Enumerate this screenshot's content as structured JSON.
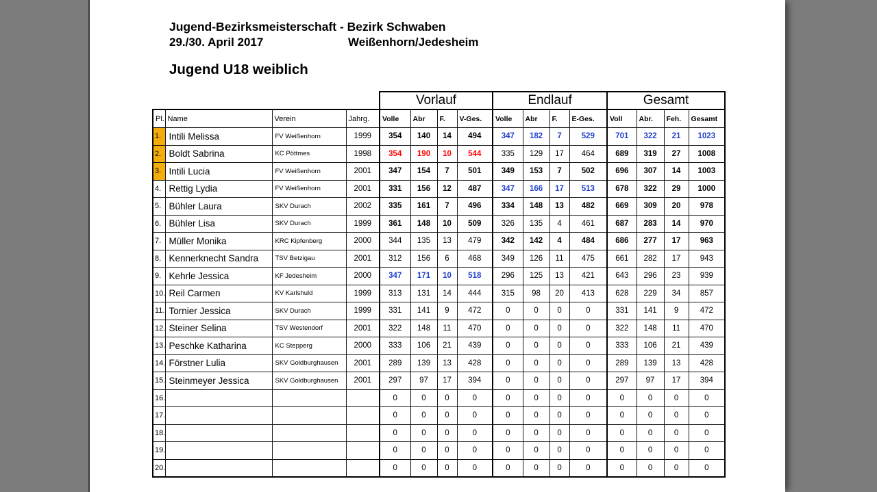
{
  "header": {
    "title": "Jugend-Bezirksmeisterschaft - Bezirk Schwaben",
    "date": "29./30. April 2017",
    "location": "Weißenhorn/Jedesheim",
    "category": "Jugend U18 weiblich"
  },
  "colors": {
    "medal_bg": "#F3AE0B",
    "highlight_blue": "#2140CC",
    "highlight_red": "#FF0000",
    "backdrop_gray": "#7C7C7C"
  },
  "table": {
    "group_headers": [
      "Vorlauf",
      "Endlauf",
      "Gesamt"
    ],
    "columns": [
      "Pl.",
      "Name",
      "Verein",
      "Jahrg.",
      "Volle",
      "Abr",
      "F.",
      "V-Ges.",
      "Volle",
      "Abr",
      "F.",
      "E-Ges.",
      "Voll",
      "Abr.",
      "Feh.",
      "Gesamt"
    ],
    "rows": [
      {
        "pl": "1.",
        "gold": true,
        "name": "Intili Melissa",
        "verein": "FV Weißenhorn",
        "jahrg": "1999",
        "v": [
          "354",
          "140",
          "14",
          "494"
        ],
        "vs": "bold",
        "e": [
          "347",
          "182",
          "7",
          "529"
        ],
        "es": "blue",
        "g": [
          "701",
          "322",
          "21",
          "1023"
        ],
        "gs": "blue"
      },
      {
        "pl": "2.",
        "gold": true,
        "name": "Boldt Sabrina",
        "verein": "KC Pöttmes",
        "jahrg": "1998",
        "v": [
          "354",
          "190",
          "10",
          "544"
        ],
        "vs": "red",
        "e": [
          "335",
          "129",
          "17",
          "464"
        ],
        "es": "plain",
        "g": [
          "689",
          "319",
          "27",
          "1008"
        ],
        "gs": "bold"
      },
      {
        "pl": "3.",
        "gold": true,
        "name": "Intili Lucia",
        "verein": "FV Weißenhorn",
        "jahrg": "2001",
        "v": [
          "347",
          "154",
          "7",
          "501"
        ],
        "vs": "bold",
        "e": [
          "349",
          "153",
          "7",
          "502"
        ],
        "es": "bold",
        "g": [
          "696",
          "307",
          "14",
          "1003"
        ],
        "gs": "bold"
      },
      {
        "pl": "4.",
        "gold": false,
        "name": "Rettig Lydia",
        "verein": "FV Weißenhorn",
        "jahrg": "2001",
        "v": [
          "331",
          "156",
          "12",
          "487"
        ],
        "vs": "bold",
        "e": [
          "347",
          "166",
          "17",
          "513"
        ],
        "es": "blue",
        "g": [
          "678",
          "322",
          "29",
          "1000"
        ],
        "gs": "bold"
      },
      {
        "pl": "5.",
        "gold": false,
        "name": "Bühler Laura",
        "verein": "SKV Durach",
        "jahrg": "2002",
        "v": [
          "335",
          "161",
          "7",
          "496"
        ],
        "vs": "bold",
        "e": [
          "334",
          "148",
          "13",
          "482"
        ],
        "es": "bold",
        "g": [
          "669",
          "309",
          "20",
          "978"
        ],
        "gs": "bold"
      },
      {
        "pl": "6.",
        "gold": false,
        "name": "Bühler Lisa",
        "verein": "SKV Durach",
        "jahrg": "1999",
        "v": [
          "361",
          "148",
          "10",
          "509"
        ],
        "vs": "bold",
        "e": [
          "326",
          "135",
          "4",
          "461"
        ],
        "es": "plain",
        "g": [
          "687",
          "283",
          "14",
          "970"
        ],
        "gs": "bold"
      },
      {
        "pl": "7.",
        "gold": false,
        "name": "Müller Monika",
        "verein": "KRC Kipfenberg",
        "jahrg": "2000",
        "v": [
          "344",
          "135",
          "13",
          "479"
        ],
        "vs": "plain",
        "e": [
          "342",
          "142",
          "4",
          "484"
        ],
        "es": "bold",
        "g": [
          "686",
          "277",
          "17",
          "963"
        ],
        "gs": "bold"
      },
      {
        "pl": "8.",
        "gold": false,
        "name": "Kennerknecht Sandra",
        "verein": "TSV Betzigau",
        "jahrg": "2001",
        "v": [
          "312",
          "156",
          "6",
          "468"
        ],
        "vs": "plain",
        "e": [
          "349",
          "126",
          "11",
          "475"
        ],
        "es": "plain",
        "g": [
          "661",
          "282",
          "17",
          "943"
        ],
        "gs": "plain"
      },
      {
        "pl": "9.",
        "gold": false,
        "name": "Kehrle Jessica",
        "verein": "KF Jedesheim",
        "jahrg": "2000",
        "v": [
          "347",
          "171",
          "10",
          "518"
        ],
        "vs": "blue",
        "e": [
          "296",
          "125",
          "13",
          "421"
        ],
        "es": "plain",
        "g": [
          "643",
          "296",
          "23",
          "939"
        ],
        "gs": "plain"
      },
      {
        "pl": "10.",
        "gold": false,
        "name": "Reil Carmen",
        "verein": "KV Karlshuld",
        "jahrg": "1999",
        "v": [
          "313",
          "131",
          "14",
          "444"
        ],
        "vs": "plain",
        "e": [
          "315",
          "98",
          "20",
          "413"
        ],
        "es": "plain",
        "g": [
          "628",
          "229",
          "34",
          "857"
        ],
        "gs": "plain"
      },
      {
        "pl": "11.",
        "gold": false,
        "name": "Tornier Jessica",
        "verein": "SKV Durach",
        "jahrg": "1999",
        "v": [
          "331",
          "141",
          "9",
          "472"
        ],
        "vs": "plain",
        "e": [
          "0",
          "0",
          "0",
          "0"
        ],
        "es": "plain",
        "g": [
          "331",
          "141",
          "9",
          "472"
        ],
        "gs": "plain"
      },
      {
        "pl": "12.",
        "gold": false,
        "name": "Steiner Selina",
        "verein": "TSV Westendorf",
        "jahrg": "2001",
        "v": [
          "322",
          "148",
          "11",
          "470"
        ],
        "vs": "plain",
        "e": [
          "0",
          "0",
          "0",
          "0"
        ],
        "es": "plain",
        "g": [
          "322",
          "148",
          "11",
          "470"
        ],
        "gs": "plain"
      },
      {
        "pl": "13.",
        "gold": false,
        "name": "Peschke Katharina",
        "verein": "KC Stepperg",
        "jahrg": "2000",
        "v": [
          "333",
          "106",
          "21",
          "439"
        ],
        "vs": "plain",
        "e": [
          "0",
          "0",
          "0",
          "0"
        ],
        "es": "plain",
        "g": [
          "333",
          "106",
          "21",
          "439"
        ],
        "gs": "plain"
      },
      {
        "pl": "14.",
        "gold": false,
        "name": "Förstner Lulia",
        "verein": "SKV Goldburghausen",
        "jahrg": "2001",
        "v": [
          "289",
          "139",
          "13",
          "428"
        ],
        "vs": "plain",
        "e": [
          "0",
          "0",
          "0",
          "0"
        ],
        "es": "plain",
        "g": [
          "289",
          "139",
          "13",
          "428"
        ],
        "gs": "plain"
      },
      {
        "pl": "15.",
        "gold": false,
        "name": "Steinmeyer Jessica",
        "verein": "SKV Goldburghausen",
        "jahrg": "2001",
        "v": [
          "297",
          "97",
          "17",
          "394"
        ],
        "vs": "plain",
        "e": [
          "0",
          "0",
          "0",
          "0"
        ],
        "es": "plain",
        "g": [
          "297",
          "97",
          "17",
          "394"
        ],
        "gs": "plain"
      },
      {
        "pl": "16.",
        "gold": false,
        "name": "",
        "verein": "",
        "jahrg": "",
        "v": [
          "0",
          "0",
          "0",
          "0"
        ],
        "vs": "plain",
        "e": [
          "0",
          "0",
          "0",
          "0"
        ],
        "es": "plain",
        "g": [
          "0",
          "0",
          "0",
          "0"
        ],
        "gs": "plain"
      },
      {
        "pl": "17.",
        "gold": false,
        "name": "",
        "verein": "",
        "jahrg": "",
        "v": [
          "0",
          "0",
          "0",
          "0"
        ],
        "vs": "plain",
        "e": [
          "0",
          "0",
          "0",
          "0"
        ],
        "es": "plain",
        "g": [
          "0",
          "0",
          "0",
          "0"
        ],
        "gs": "plain"
      },
      {
        "pl": "18.",
        "gold": false,
        "name": "",
        "verein": "",
        "jahrg": "",
        "v": [
          "0",
          "0",
          "0",
          "0"
        ],
        "vs": "plain",
        "e": [
          "0",
          "0",
          "0",
          "0"
        ],
        "es": "plain",
        "g": [
          "0",
          "0",
          "0",
          "0"
        ],
        "gs": "plain"
      },
      {
        "pl": "19.",
        "gold": false,
        "name": "",
        "verein": "",
        "jahrg": "",
        "v": [
          "0",
          "0",
          "0",
          "0"
        ],
        "vs": "plain",
        "e": [
          "0",
          "0",
          "0",
          "0"
        ],
        "es": "plain",
        "g": [
          "0",
          "0",
          "0",
          "0"
        ],
        "gs": "plain"
      },
      {
        "pl": "20.",
        "gold": false,
        "name": "",
        "verein": "",
        "jahrg": "",
        "v": [
          "0",
          "0",
          "0",
          "0"
        ],
        "vs": "plain",
        "e": [
          "0",
          "0",
          "0",
          "0"
        ],
        "es": "plain",
        "g": [
          "0",
          "0",
          "0",
          "0"
        ],
        "gs": "plain"
      }
    ]
  }
}
